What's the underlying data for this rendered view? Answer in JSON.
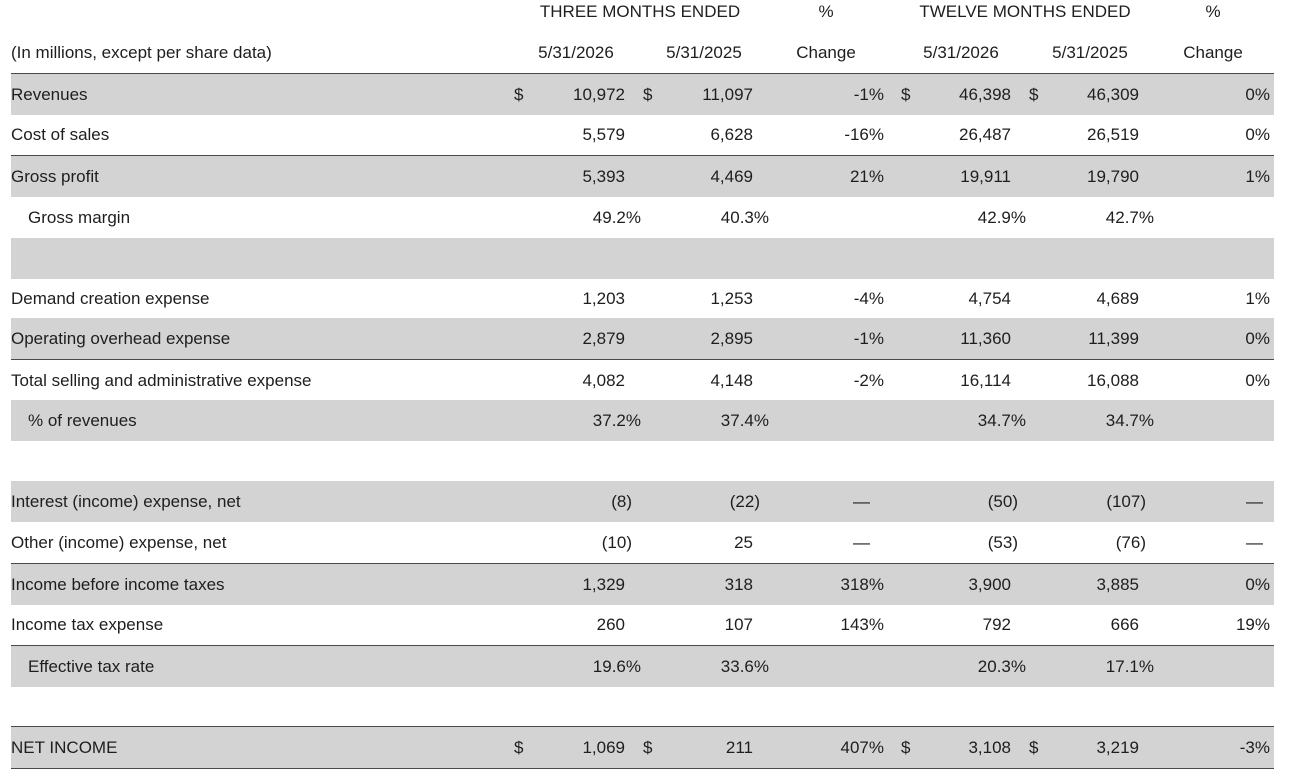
{
  "header": {
    "three_months": "THREE MONTHS ENDED",
    "pct1": "%",
    "twelve_months": "TWELVE MONTHS ENDED",
    "pct2": "%",
    "units": "(In millions, except per share data)",
    "col_q_2026": "5/31/2026",
    "col_q_2025": "5/31/2025",
    "col_q_change": "Change",
    "col_y_2026": "5/31/2026",
    "col_y_2025": "5/31/2025",
    "col_y_change": "Change"
  },
  "rows": {
    "revenues": {
      "label": "Revenues",
      "d1": "$",
      "q26": "10,972",
      "d2": "$",
      "q25": "11,097",
      "qchg": "-1%",
      "d3": "$",
      "y26": "46,398",
      "d4": "$",
      "y25": "46,309",
      "ychg": "0%"
    },
    "cost_of_sales": {
      "label": "Cost of sales",
      "q26": "5,579",
      "q25": "6,628",
      "qchg": "-16%",
      "y26": "26,487",
      "y25": "26,519",
      "ychg": "0%"
    },
    "gross_profit": {
      "label": "Gross profit",
      "q26": "5,393",
      "q25": "4,469",
      "qchg": "21%",
      "y26": "19,911",
      "y25": "19,790",
      "ychg": "1%"
    },
    "gross_margin": {
      "label": "Gross margin",
      "q26": "49.2%",
      "q25": "40.3%",
      "y26": "42.9%",
      "y25": "42.7%"
    },
    "demand_creation": {
      "label": "Demand creation expense",
      "q26": "1,203",
      "q25": "1,253",
      "qchg": "-4%",
      "y26": "4,754",
      "y25": "4,689",
      "ychg": "1%"
    },
    "operating_overhead": {
      "label": "Operating overhead expense",
      "q26": "2,879",
      "q25": "2,895",
      "qchg": "-1%",
      "y26": "11,360",
      "y25": "11,399",
      "ychg": "0%"
    },
    "total_sga": {
      "label": "Total selling and administrative expense",
      "q26": "4,082",
      "q25": "4,148",
      "qchg": "-2%",
      "y26": "16,114",
      "y25": "16,088",
      "ychg": "0%"
    },
    "pct_revenues": {
      "label": "% of revenues",
      "q26": "37.2%",
      "q25": "37.4%",
      "y26": "34.7%",
      "y25": "34.7%"
    },
    "interest": {
      "label": "Interest (income) expense, net",
      "q26": "(8)",
      "q25": "(22)",
      "qchg": "—",
      "y26": "(50)",
      "y25": "(107)",
      "ychg": "—"
    },
    "other": {
      "label": "Other (income) expense, net",
      "q26": "(10)",
      "q25": "25",
      "qchg": "—",
      "y26": "(53)",
      "y25": "(76)",
      "ychg": "—"
    },
    "income_before_tax": {
      "label": "Income before income taxes",
      "q26": "1,329",
      "q25": "318",
      "qchg": "318%",
      "y26": "3,900",
      "y25": "3,885",
      "ychg": "0%"
    },
    "income_tax": {
      "label": "Income tax expense",
      "q26": "260",
      "q25": "107",
      "qchg": "143%",
      "y26": "792",
      "y25": "666",
      "ychg": "19%"
    },
    "effective_tax": {
      "label": "Effective tax rate",
      "q26": "19.6%",
      "q25": "33.6%",
      "y26": "20.3%",
      "y25": "17.1%"
    },
    "net_income": {
      "label": "NET INCOME",
      "d1": "$",
      "q26": "1,069",
      "d2": "$",
      "q25": "211",
      "qchg": "407%",
      "d3": "$",
      "y26": "3,108",
      "d4": "$",
      "y25": "3,219",
      "ychg": "-3%"
    }
  }
}
